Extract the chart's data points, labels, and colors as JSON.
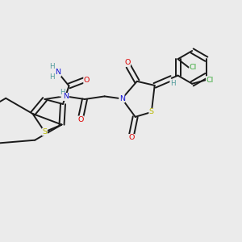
{
  "background_color": "#ebebeb",
  "bond_color": "#1a1a1a",
  "atom_colors": {
    "C": "#1a1a1a",
    "H": "#4d9999",
    "N": "#1414d4",
    "O": "#dd0000",
    "S": "#b8b800",
    "Cl": "#3aaa3a"
  },
  "lw": 1.4,
  "fs": 6.8
}
